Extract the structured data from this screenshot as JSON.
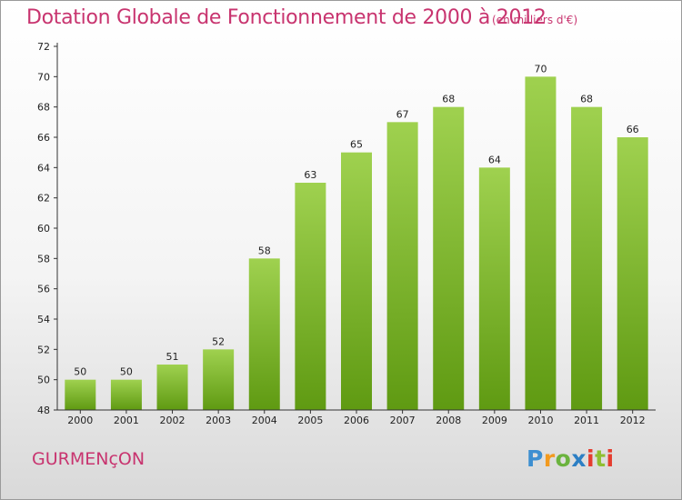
{
  "title": "Dotation Globale de Fonctionnement de 2000 à 2012",
  "subtitle": "(en milliers d'€)",
  "commune": "GURMENçON",
  "logo": {
    "text": "Proxiti",
    "letters": [
      "P",
      "r",
      "o",
      "x",
      "i",
      "t",
      "i"
    ]
  },
  "colors": {
    "title": "#c8346f",
    "bar_top": "#9fd14f",
    "bar_bottom": "#5f9a12",
    "axis": "#333333"
  },
  "chart_data": {
    "type": "bar",
    "categories": [
      "2000",
      "2001",
      "2002",
      "2003",
      "2004",
      "2005",
      "2006",
      "2007",
      "2008",
      "2009",
      "2010",
      "2011",
      "2012"
    ],
    "values": [
      50,
      50,
      51,
      52,
      58,
      63,
      65,
      67,
      68,
      64,
      70,
      68,
      66
    ],
    "data_labels": [
      "50",
      "50",
      "51",
      "52",
      "58",
      "63",
      "65",
      "67",
      "68",
      "64",
      "70",
      "68",
      "66"
    ],
    "ylim": [
      48,
      72
    ],
    "yticks": [
      "48",
      "50",
      "52",
      "54",
      "56",
      "58",
      "60",
      "62",
      "64",
      "66",
      "68",
      "70",
      "72"
    ],
    "grid": false,
    "legend": "none"
  }
}
